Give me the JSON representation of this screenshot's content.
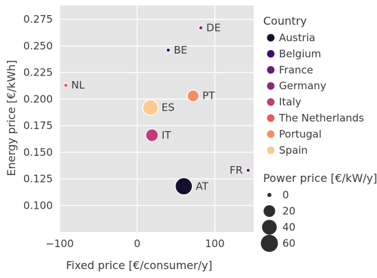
{
  "chart_data": {
    "type": "scatter",
    "title": "",
    "xlabel": "Fixed price [€/consumer/y]",
    "ylabel": "Energy price [€/kWh]",
    "xlim": [
      -100,
      150
    ],
    "ylim": [
      0.075,
      0.288
    ],
    "xticks": [
      -100,
      0,
      100
    ],
    "xtick_labels": [
      "−100",
      "0",
      "100"
    ],
    "yticks": [
      0.1,
      0.125,
      0.15,
      0.175,
      0.2,
      0.225,
      0.25,
      0.275
    ],
    "ytick_labels": [
      "0.100",
      "0.125",
      "0.150",
      "0.175",
      "0.200",
      "0.225",
      "0.250",
      "0.275"
    ],
    "grid": true,
    "background": "#e5e5e5",
    "points": [
      {
        "country": "Austria",
        "label": "AT",
        "x": 60,
        "y": 0.118,
        "power_price": 60,
        "color": "#150f2e",
        "label_side": "right"
      },
      {
        "country": "Belgium",
        "label": "BE",
        "x": 40,
        "y": 0.246,
        "power_price": 0,
        "color": "#3b0f70",
        "label_side": "right"
      },
      {
        "country": "France",
        "label": "FR",
        "x": 143,
        "y": 0.133,
        "power_price": 0,
        "color": "#6a1c7e",
        "label_side": "left"
      },
      {
        "country": "Germany",
        "label": "DE",
        "x": 82,
        "y": 0.267,
        "power_price": 0,
        "color": "#8c2981",
        "label_side": "right"
      },
      {
        "country": "Italy",
        "label": "IT",
        "x": 19,
        "y": 0.166,
        "power_price": 25,
        "color": "#c13b74",
        "label_side": "right"
      },
      {
        "country": "The Netherlands",
        "label": "NL",
        "x": -92,
        "y": 0.213,
        "power_price": 0,
        "color": "#ee5a5a",
        "label_side": "right"
      },
      {
        "country": "Portugal",
        "label": "PT",
        "x": 72,
        "y": 0.203,
        "power_price": 20,
        "color": "#f58c62",
        "label_side": "right"
      },
      {
        "country": "Spain",
        "label": "ES",
        "x": 17,
        "y": 0.192,
        "power_price": 45,
        "color": "#fcca8f",
        "label_side": "right"
      }
    ],
    "legend": {
      "placement": "right",
      "country_title": "Country",
      "countries": [
        {
          "name": "Austria",
          "color": "#150f2e"
        },
        {
          "name": "Belgium",
          "color": "#3b0f70"
        },
        {
          "name": "France",
          "color": "#6a1c7e"
        },
        {
          "name": "Germany",
          "color": "#8c2981"
        },
        {
          "name": "Italy",
          "color": "#c13b74"
        },
        {
          "name": "The Netherlands",
          "color": "#ee5a5a"
        },
        {
          "name": "Portugal",
          "color": "#f58c62"
        },
        {
          "name": "Spain",
          "color": "#fcca8f"
        }
      ],
      "size_title": "Power price [€/kW/y]",
      "sizes": [
        {
          "label": "0",
          "value": 0
        },
        {
          "label": "20",
          "value": 20
        },
        {
          "label": "40",
          "value": 40
        },
        {
          "label": "60",
          "value": 60
        }
      ]
    }
  }
}
